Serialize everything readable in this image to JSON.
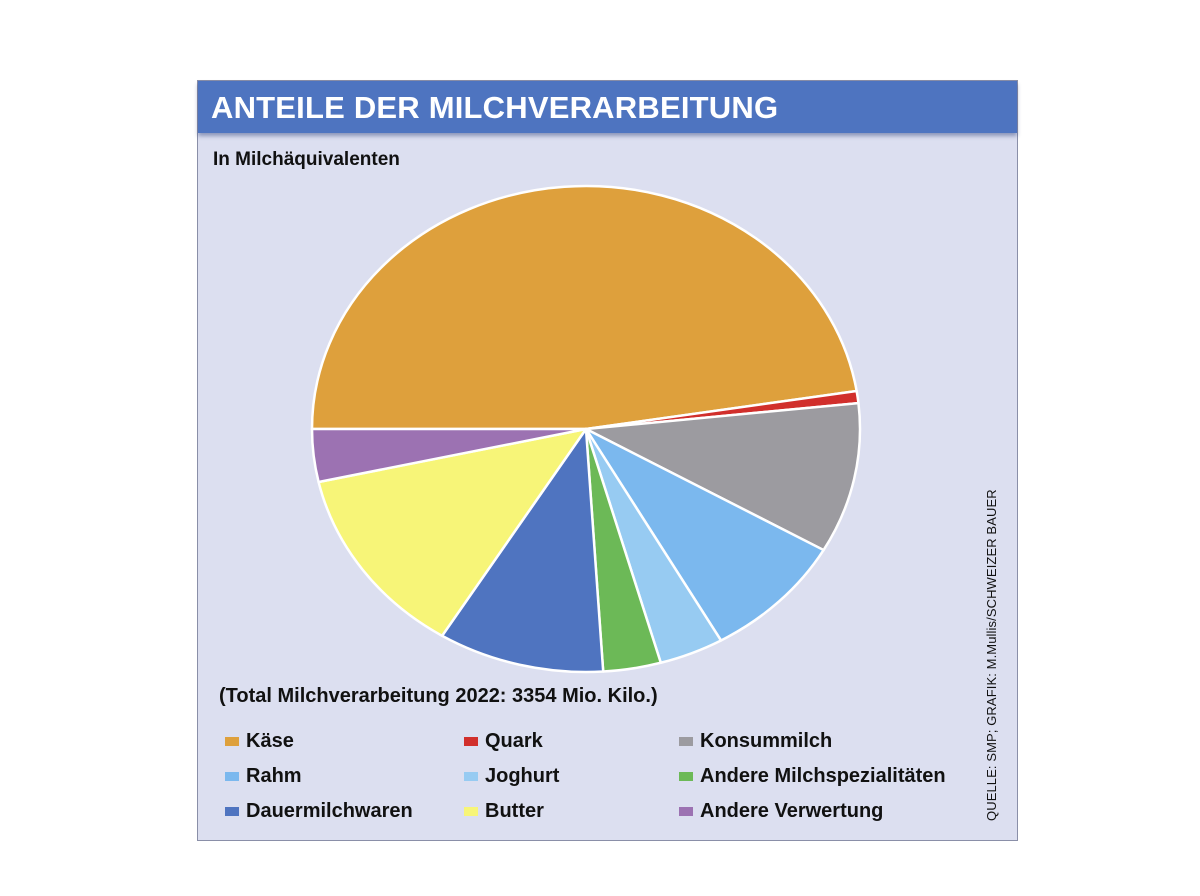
{
  "header": {
    "title": "ANTEILE DER MILCHVERARBEITUNG"
  },
  "subtitle": "In Milchäquivalenten",
  "total_note": "(Total Milchverarbeitung 2022: 3354 Mio. Kilo.)",
  "source": "QUELLE: SMP; GRAFIK: M.Mullis/SCHWEIZER BAUER",
  "chart_data": {
    "type": "pie",
    "title": "ANTEILE DER MILCHVERARBEITUNG",
    "subtitle": "In Milchäquivalenten",
    "unit": "percent (estimated from slice angles)",
    "start": "clockwise from the 9 o'clock position",
    "slices": [
      {
        "label": "Käse",
        "value": 47.5,
        "color": "#dea03c"
      },
      {
        "label": "Quark",
        "value": 0.8,
        "color": "#d12f2c"
      },
      {
        "label": "Konsummilch",
        "value": 10.0,
        "color": "#9c9ba0"
      },
      {
        "label": "Rahm",
        "value": 8.5,
        "color": "#7bb8ee"
      },
      {
        "label": "Joghurt",
        "value": 3.8,
        "color": "#97cbf2"
      },
      {
        "label": "Andere Milchspezialitäten",
        "value": 3.4,
        "color": "#6cb957"
      },
      {
        "label": "Dauermilchwaren",
        "value": 9.8,
        "color": "#4f74c0"
      },
      {
        "label": "Butter",
        "value": 12.7,
        "color": "#f7f578"
      },
      {
        "label": "Andere Verwertung",
        "value": 3.5,
        "color": "#9c72b2"
      }
    ],
    "legend": [
      {
        "label": "Käse",
        "color": "#dea03c"
      },
      {
        "label": "Quark",
        "color": "#d12f2c"
      },
      {
        "label": "Konsummilch",
        "color": "#9c9ba0"
      },
      {
        "label": "Rahm",
        "color": "#7bb8ee"
      },
      {
        "label": "Joghurt",
        "color": "#97cbf2"
      },
      {
        "label": "Andere Milchspezialitäten",
        "color": "#6cb957"
      },
      {
        "label": "Dauermilchwaren",
        "color": "#4f74c0"
      },
      {
        "label": "Butter",
        "color": "#f7f578"
      },
      {
        "label": "Andere Verwertung",
        "color": "#9c72b2"
      }
    ],
    "legend_position": "bottom"
  }
}
